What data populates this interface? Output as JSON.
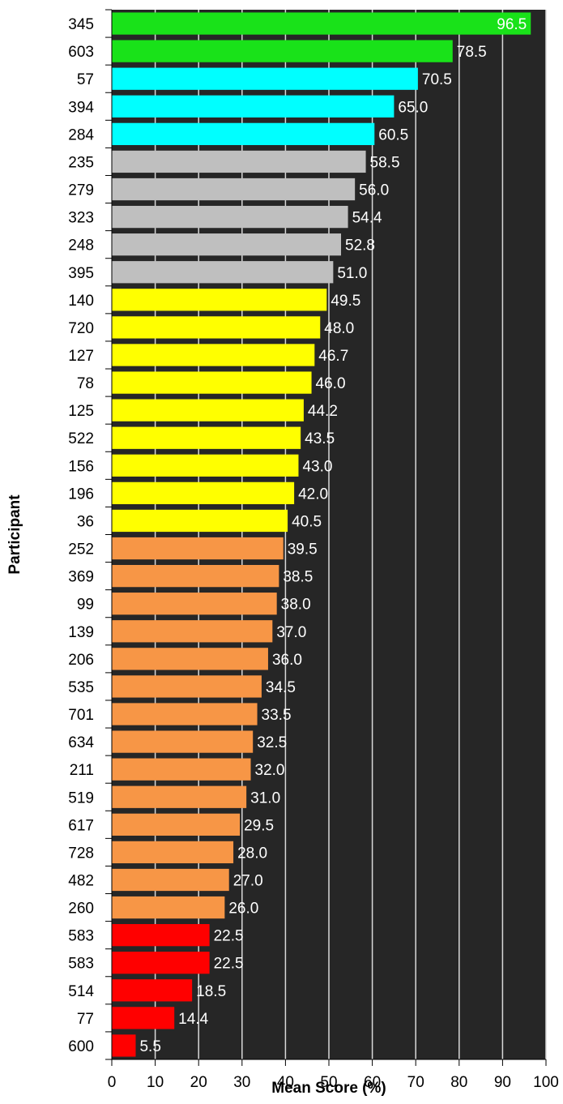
{
  "chart_data": {
    "type": "bar",
    "orientation": "horizontal",
    "title": "",
    "xlabel": "Mean Score (%)",
    "ylabel": "Participant",
    "xlim": [
      0,
      100
    ],
    "x_ticks": [
      0,
      10,
      20,
      30,
      40,
      50,
      60,
      70,
      80,
      90,
      100
    ],
    "grid": true,
    "legend": "none",
    "plot_background": "#262626",
    "gridline_color": "#d9d9d9",
    "categories": [
      "345",
      "603",
      "57",
      "394",
      "284",
      "235",
      "279",
      "323",
      "248",
      "395",
      "140",
      "720",
      "127",
      "78",
      "125",
      "522",
      "156",
      "196",
      "36",
      "252",
      "369",
      "99",
      "139",
      "206",
      "535",
      "701",
      "634",
      "211",
      "519",
      "617",
      "728",
      "482",
      "260",
      "583",
      "583",
      "514",
      "77",
      "600"
    ],
    "values": [
      96.5,
      78.5,
      70.5,
      65.0,
      60.5,
      58.5,
      56.0,
      54.4,
      52.8,
      51.0,
      49.5,
      48.0,
      46.7,
      46.0,
      44.2,
      43.5,
      43.0,
      42.0,
      40.5,
      39.5,
      38.5,
      38.0,
      37.0,
      36.0,
      34.5,
      33.5,
      32.5,
      32.0,
      31.0,
      29.5,
      28.0,
      27.0,
      26.0,
      22.5,
      22.5,
      18.5,
      14.4,
      5.5
    ],
    "data_labels": [
      "96.5",
      "78.5",
      "70.5",
      "65.0",
      "60.5",
      "58.5",
      "56.0",
      "54.4",
      "52.8",
      "51.0",
      "49.5",
      "48.0",
      "46.7",
      "46.0",
      "44.2",
      "43.5",
      "43.0",
      "42.0",
      "40.5",
      "39.5",
      "38.5",
      "38.0",
      "37.0",
      "36.0",
      "34.5",
      "33.5",
      "32.5",
      "32.0",
      "31.0",
      "29.5",
      "28.0",
      "27.0",
      "26.0",
      "22.5",
      "22.5",
      "18.5",
      "14.4",
      "5.5"
    ],
    "bar_colors": [
      "#19e219",
      "#19e219",
      "#00ffff",
      "#00ffff",
      "#00ffff",
      "#bfbfbf",
      "#bfbfbf",
      "#bfbfbf",
      "#bfbfbf",
      "#bfbfbf",
      "#ffff00",
      "#ffff00",
      "#ffff00",
      "#ffff00",
      "#ffff00",
      "#ffff00",
      "#ffff00",
      "#ffff00",
      "#ffff00",
      "#f79646",
      "#f79646",
      "#f79646",
      "#f79646",
      "#f79646",
      "#f79646",
      "#f79646",
      "#f79646",
      "#f79646",
      "#f79646",
      "#f79646",
      "#f79646",
      "#f79646",
      "#f79646",
      "#ff0000",
      "#ff0000",
      "#ff0000",
      "#ff0000",
      "#ff0000"
    ]
  }
}
